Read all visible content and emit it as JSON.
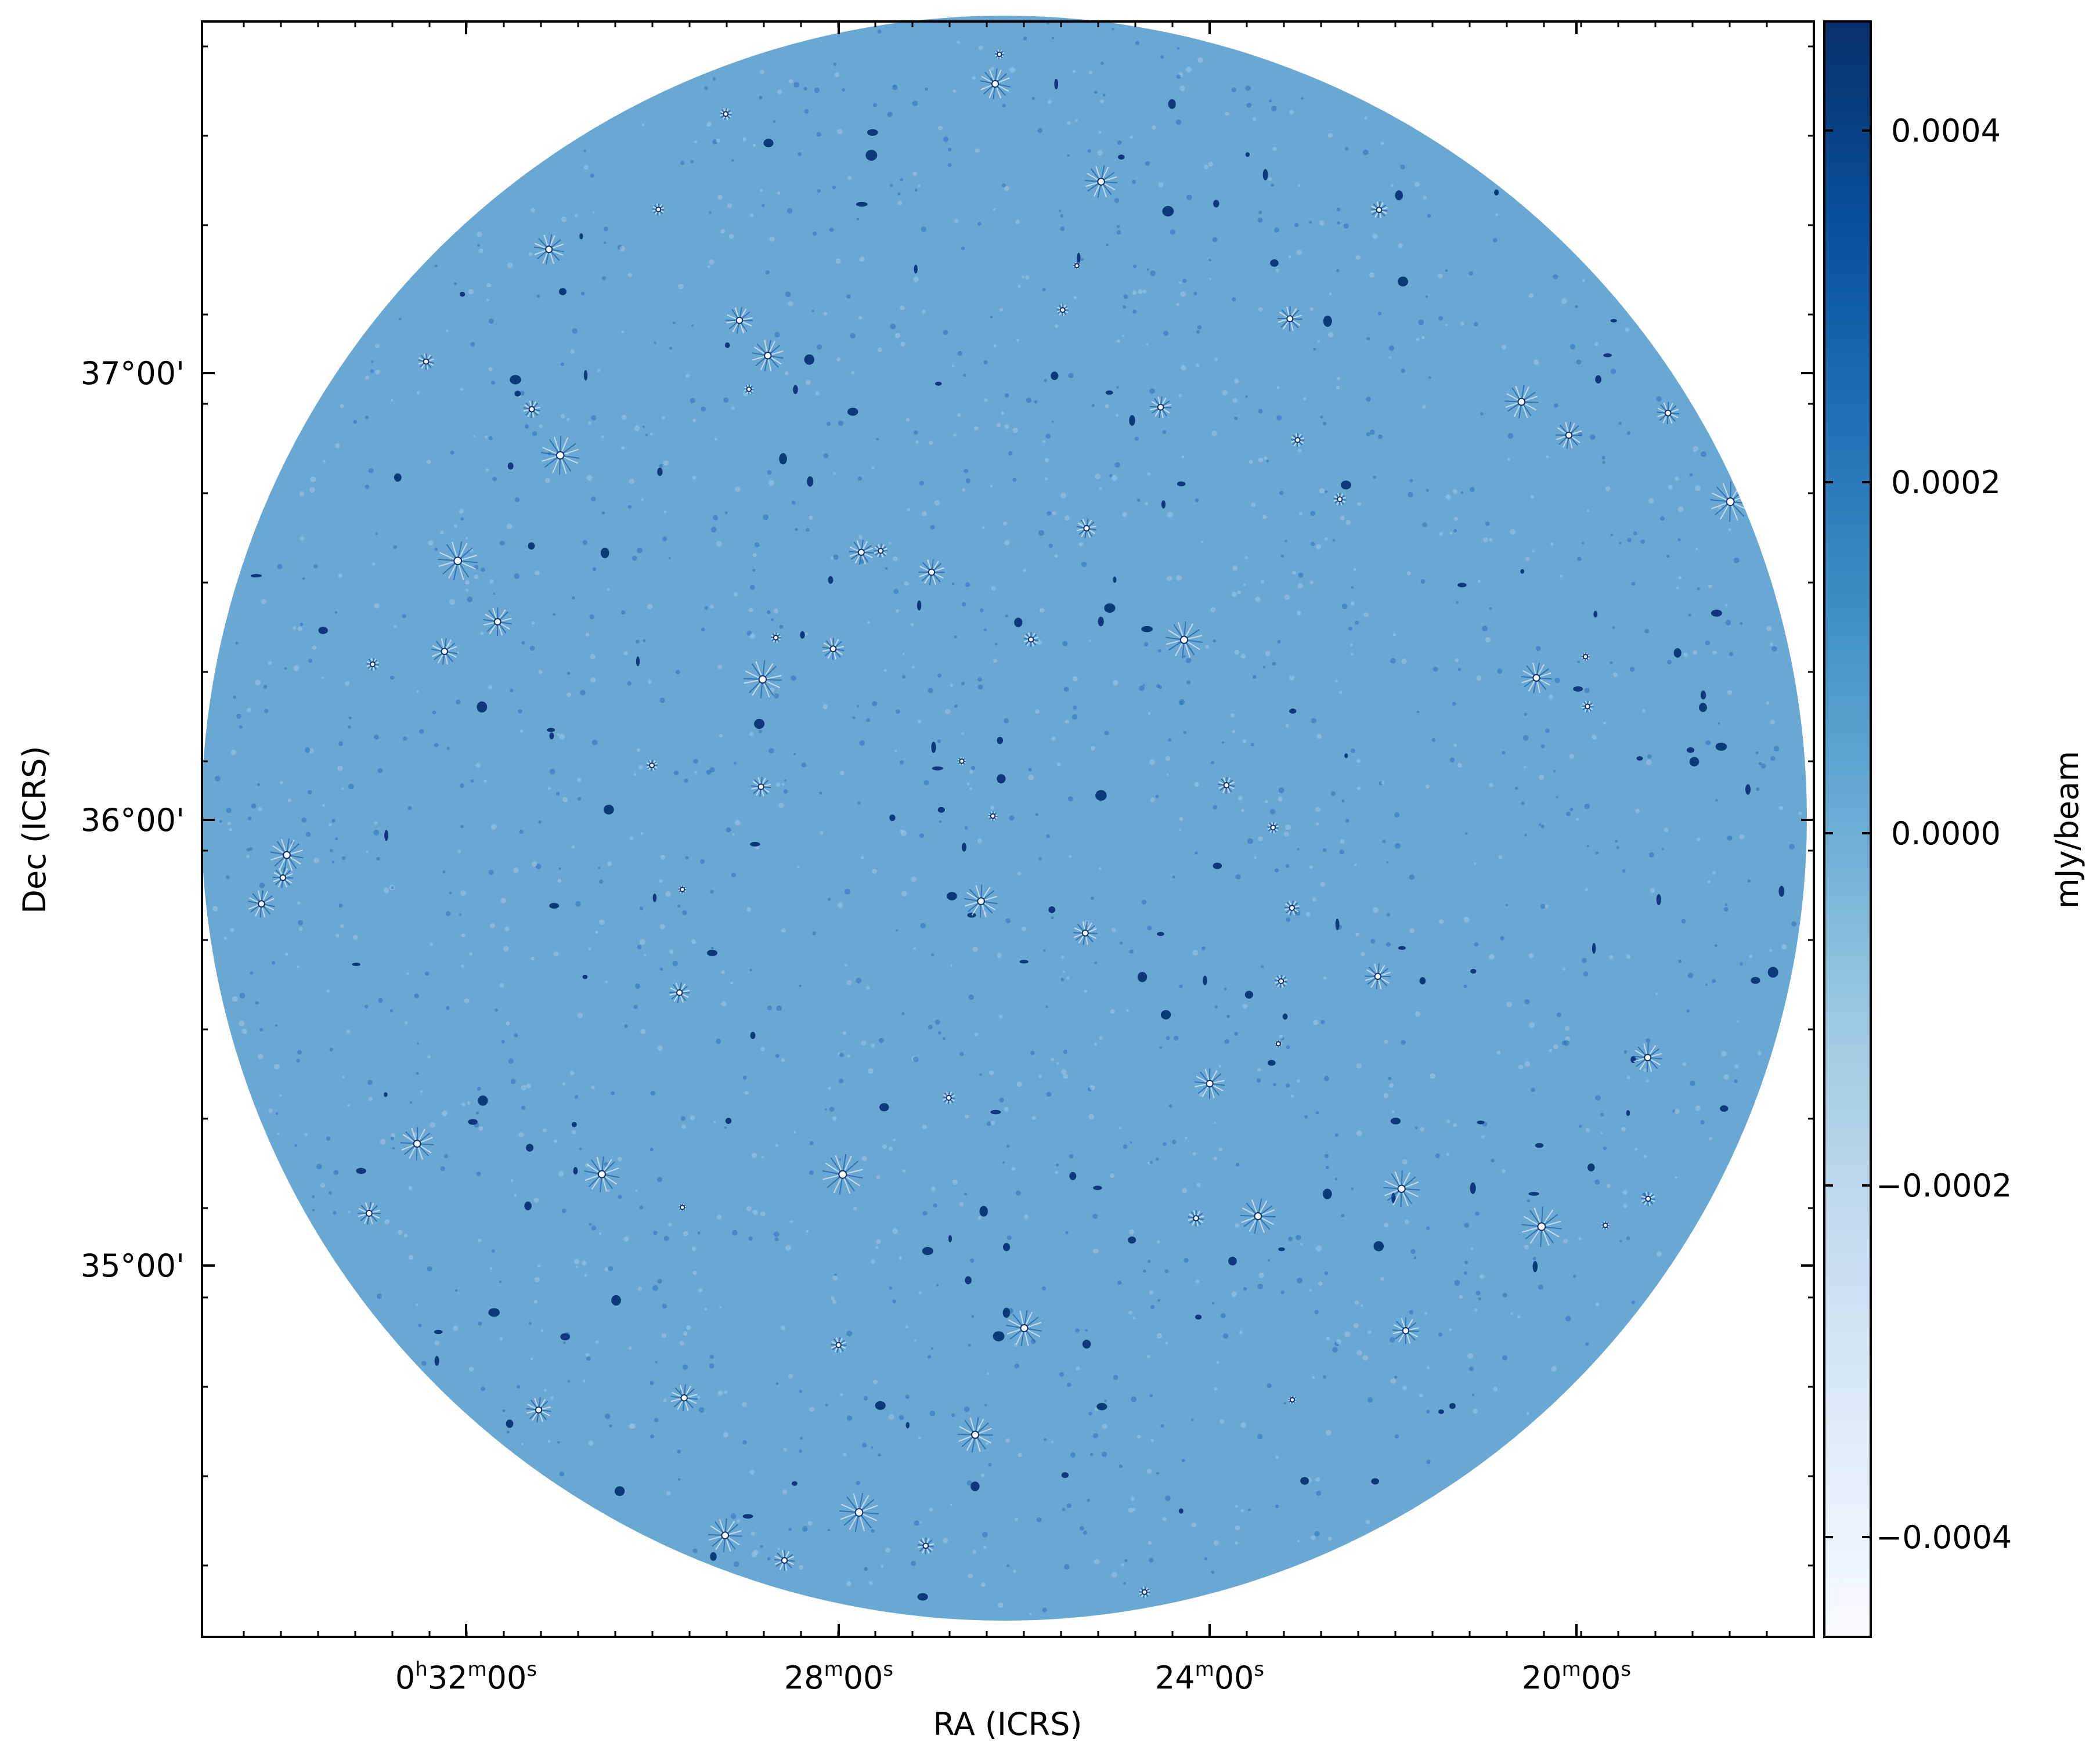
{
  "figure": {
    "xlabel": "RA (ICRS)",
    "ylabel": "Dec (ICRS)",
    "colorbar_label": "mJy/beam",
    "colormap": [
      "#f7fbff",
      "#deebf7",
      "#c6dbef",
      "#9ecae1",
      "#6baed6",
      "#4292c6",
      "#2171b5",
      "#08519c",
      "#08306b"
    ],
    "background_color": "#6aa8d4",
    "x_ticks": [
      {
        "h": "0",
        "m": "32",
        "s": "00"
      },
      {
        "h": "",
        "m": "28",
        "s": "00"
      },
      {
        "h": "",
        "m": "24",
        "s": "00"
      },
      {
        "h": "",
        "m": "20",
        "s": "00"
      }
    ],
    "y_ticks": [
      "37°00'",
      "36°00'",
      "35°00'"
    ],
    "colorbar_ticks": [
      "0.0004",
      "0.0002",
      "0.0000",
      "−0.0002",
      "−0.0004"
    ],
    "colorbar_range": [
      -0.00046,
      0.00046
    ]
  }
}
